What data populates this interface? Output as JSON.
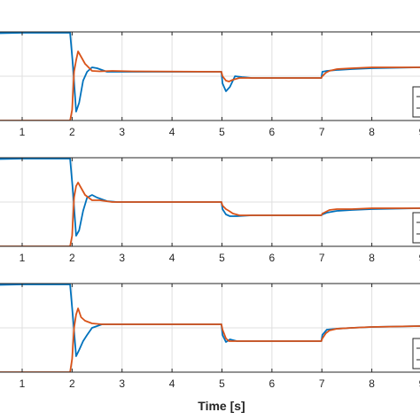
{
  "figure": {
    "xlabel": "Time [s]"
  },
  "chart_data": [
    {
      "type": "line",
      "xlim": [
        0,
        10
      ],
      "xticks": [
        1,
        2,
        3,
        4,
        5,
        6,
        7,
        8,
        9
      ],
      "xtick_labels": [
        "1",
        "2",
        "3",
        "4",
        "5",
        "6",
        "7",
        "8",
        "9"
      ],
      "ylim": [
        0,
        1
      ],
      "grid": true,
      "legend_placement": "right",
      "series": [
        {
          "color": "#0072BD",
          "points": [
            [
              0,
              0.96
            ],
            [
              0.2,
              0.975
            ],
            [
              0.5,
              0.985
            ],
            [
              1,
              0.99
            ],
            [
              1.96,
              0.99
            ],
            [
              2.02,
              0.6
            ],
            [
              2.08,
              0.1
            ],
            [
              2.14,
              0.2
            ],
            [
              2.22,
              0.45
            ],
            [
              2.3,
              0.55
            ],
            [
              2.4,
              0.6
            ],
            [
              2.5,
              0.59
            ],
            [
              2.7,
              0.55
            ],
            [
              2.9,
              0.55
            ],
            [
              3.1,
              0.55
            ],
            [
              4.99,
              0.55
            ],
            [
              5.01,
              0.42
            ],
            [
              5.08,
              0.33
            ],
            [
              5.16,
              0.38
            ],
            [
              5.26,
              0.5
            ],
            [
              5.4,
              0.49
            ],
            [
              5.6,
              0.48
            ],
            [
              6.99,
              0.48
            ],
            [
              7.01,
              0.55
            ],
            [
              7.1,
              0.56
            ],
            [
              7.3,
              0.57
            ],
            [
              7.6,
              0.58
            ],
            [
              8,
              0.59
            ],
            [
              9,
              0.6
            ],
            [
              10,
              0.6
            ]
          ]
        },
        {
          "color": "#D95319",
          "points": [
            [
              0,
              0
            ],
            [
              1.96,
              0
            ],
            [
              2.0,
              0.12
            ],
            [
              2.04,
              0.55
            ],
            [
              2.08,
              0.68
            ],
            [
              2.12,
              0.78
            ],
            [
              2.18,
              0.72
            ],
            [
              2.26,
              0.64
            ],
            [
              2.4,
              0.56
            ],
            [
              2.55,
              0.555
            ],
            [
              2.8,
              0.56
            ],
            [
              3.2,
              0.555
            ],
            [
              4.99,
              0.55
            ],
            [
              5.01,
              0.5
            ],
            [
              5.08,
              0.45
            ],
            [
              5.14,
              0.44
            ],
            [
              5.22,
              0.46
            ],
            [
              5.35,
              0.48
            ],
            [
              5.6,
              0.48
            ],
            [
              6.99,
              0.48
            ],
            [
              7.01,
              0.5
            ],
            [
              7.08,
              0.54
            ],
            [
              7.15,
              0.56
            ],
            [
              7.3,
              0.58
            ],
            [
              7.6,
              0.59
            ],
            [
              8,
              0.6
            ],
            [
              9,
              0.6
            ],
            [
              10,
              0.6
            ]
          ]
        }
      ]
    },
    {
      "type": "line",
      "xlim": [
        0,
        10
      ],
      "xticks": [
        1,
        2,
        3,
        4,
        5,
        6,
        7,
        8,
        9
      ],
      "xtick_labels": [
        "1",
        "2",
        "3",
        "4",
        "5",
        "6",
        "7",
        "8",
        "9"
      ],
      "ylim": [
        0,
        1
      ],
      "grid": true,
      "legend_placement": "right",
      "series": [
        {
          "color": "#0072BD",
          "points": [
            [
              0,
              0.95
            ],
            [
              0.2,
              0.97
            ],
            [
              0.5,
              0.985
            ],
            [
              1,
              0.99
            ],
            [
              1.96,
              0.99
            ],
            [
              2.02,
              0.6
            ],
            [
              2.08,
              0.12
            ],
            [
              2.14,
              0.18
            ],
            [
              2.22,
              0.4
            ],
            [
              2.3,
              0.55
            ],
            [
              2.4,
              0.58
            ],
            [
              2.5,
              0.55
            ],
            [
              2.7,
              0.51
            ],
            [
              2.9,
              0.5
            ],
            [
              3.2,
              0.5
            ],
            [
              4.99,
              0.5
            ],
            [
              5.01,
              0.42
            ],
            [
              5.08,
              0.36
            ],
            [
              5.16,
              0.34
            ],
            [
              5.3,
              0.34
            ],
            [
              5.6,
              0.35
            ],
            [
              6.99,
              0.35
            ],
            [
              7.01,
              0.36
            ],
            [
              7.1,
              0.38
            ],
            [
              7.3,
              0.4
            ],
            [
              7.6,
              0.41
            ],
            [
              8,
              0.42
            ],
            [
              9,
              0.43
            ],
            [
              10,
              0.43
            ]
          ]
        },
        {
          "color": "#D95319",
          "points": [
            [
              0,
              0
            ],
            [
              1.96,
              0
            ],
            [
              2.0,
              0.12
            ],
            [
              2.04,
              0.55
            ],
            [
              2.08,
              0.68
            ],
            [
              2.12,
              0.72
            ],
            [
              2.18,
              0.66
            ],
            [
              2.26,
              0.58
            ],
            [
              2.4,
              0.52
            ],
            [
              2.55,
              0.52
            ],
            [
              2.8,
              0.5
            ],
            [
              3.2,
              0.5
            ],
            [
              4.99,
              0.5
            ],
            [
              5.01,
              0.46
            ],
            [
              5.08,
              0.42
            ],
            [
              5.14,
              0.4
            ],
            [
              5.22,
              0.37
            ],
            [
              5.35,
              0.35
            ],
            [
              5.6,
              0.35
            ],
            [
              6.99,
              0.35
            ],
            [
              7.01,
              0.37
            ],
            [
              7.08,
              0.39
            ],
            [
              7.15,
              0.41
            ],
            [
              7.3,
              0.42
            ],
            [
              7.6,
              0.42
            ],
            [
              8,
              0.43
            ],
            [
              9,
              0.43
            ],
            [
              10,
              0.43
            ]
          ]
        }
      ]
    },
    {
      "type": "line",
      "xlim": [
        0,
        10
      ],
      "xticks": [
        1,
        2,
        3,
        4,
        5,
        6,
        7,
        8,
        9
      ],
      "xtick_labels": [
        "1",
        "2",
        "3",
        "4",
        "5",
        "6",
        "7",
        "8",
        "9"
      ],
      "ylim": [
        0,
        1
      ],
      "grid": true,
      "legend_placement": "right",
      "series": [
        {
          "color": "#0072BD",
          "points": [
            [
              0,
              0.95
            ],
            [
              0.2,
              0.97
            ],
            [
              0.5,
              0.985
            ],
            [
              1,
              0.99
            ],
            [
              1.96,
              0.99
            ],
            [
              2.02,
              0.6
            ],
            [
              2.08,
              0.18
            ],
            [
              2.14,
              0.25
            ],
            [
              2.22,
              0.35
            ],
            [
              2.3,
              0.42
            ],
            [
              2.4,
              0.5
            ],
            [
              2.6,
              0.54
            ],
            [
              2.8,
              0.54
            ],
            [
              3.2,
              0.54
            ],
            [
              4.99,
              0.54
            ],
            [
              5.01,
              0.42
            ],
            [
              5.08,
              0.34
            ],
            [
              5.16,
              0.37
            ],
            [
              5.3,
              0.35
            ],
            [
              5.6,
              0.35
            ],
            [
              6.99,
              0.35
            ],
            [
              7.01,
              0.42
            ],
            [
              7.1,
              0.48
            ],
            [
              7.3,
              0.49
            ],
            [
              7.6,
              0.5
            ],
            [
              8,
              0.51
            ],
            [
              9,
              0.52
            ],
            [
              10,
              0.52
            ]
          ]
        },
        {
          "color": "#D95319",
          "points": [
            [
              0,
              0
            ],
            [
              1.96,
              0
            ],
            [
              2.0,
              0.15
            ],
            [
              2.04,
              0.5
            ],
            [
              2.08,
              0.65
            ],
            [
              2.12,
              0.72
            ],
            [
              2.18,
              0.62
            ],
            [
              2.26,
              0.58
            ],
            [
              2.4,
              0.55
            ],
            [
              2.6,
              0.54
            ],
            [
              2.8,
              0.54
            ],
            [
              3.2,
              0.54
            ],
            [
              4.99,
              0.54
            ],
            [
              5.01,
              0.48
            ],
            [
              5.08,
              0.38
            ],
            [
              5.14,
              0.35
            ],
            [
              5.22,
              0.35
            ],
            [
              5.35,
              0.35
            ],
            [
              5.6,
              0.35
            ],
            [
              6.99,
              0.35
            ],
            [
              7.01,
              0.38
            ],
            [
              7.08,
              0.44
            ],
            [
              7.15,
              0.47
            ],
            [
              7.3,
              0.49
            ],
            [
              7.6,
              0.5
            ],
            [
              8,
              0.51
            ],
            [
              9,
              0.52
            ],
            [
              10,
              0.52
            ]
          ]
        }
      ]
    }
  ]
}
